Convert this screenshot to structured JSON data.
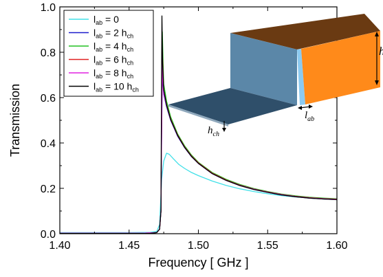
{
  "chart_data": {
    "type": "line",
    "title": "",
    "xlabel": "Frequency [ GHz ]",
    "ylabel": "Transmission",
    "xlim": [
      1.4,
      1.6
    ],
    "ylim": [
      0.0,
      1.0
    ],
    "xticks": [
      "1.40",
      "1.45",
      "1.50",
      "1.55",
      "1.60"
    ],
    "yticks": [
      "0.0",
      "0.2",
      "0.4",
      "0.6",
      "0.8",
      "1.0"
    ],
    "grid": false,
    "legend_position": "top-left",
    "series": [
      {
        "name": "l_ab = 0",
        "legend_main": "l",
        "legend_sub": "ab",
        "legend_rest": " = 0",
        "legend_rest_sub": "",
        "color": "#40e0e8",
        "points": [
          [
            1.4,
            0.005
          ],
          [
            1.45,
            0.005
          ],
          [
            1.465,
            0.006
          ],
          [
            1.47,
            0.01
          ],
          [
            1.472,
            0.04
          ],
          [
            1.4735,
            0.24
          ],
          [
            1.475,
            0.32
          ],
          [
            1.477,
            0.355
          ],
          [
            1.479,
            0.35
          ],
          [
            1.482,
            0.33
          ],
          [
            1.486,
            0.305
          ],
          [
            1.49,
            0.288
          ],
          [
            1.495,
            0.27
          ],
          [
            1.5,
            0.256
          ],
          [
            1.51,
            0.232
          ],
          [
            1.52,
            0.213
          ],
          [
            1.53,
            0.198
          ],
          [
            1.54,
            0.186
          ],
          [
            1.55,
            0.176
          ],
          [
            1.56,
            0.168
          ],
          [
            1.57,
            0.162
          ],
          [
            1.58,
            0.158
          ],
          [
            1.59,
            0.155
          ],
          [
            1.6,
            0.153
          ]
        ]
      },
      {
        "name": "l_ab = 2 h_ch",
        "legend_main": "l",
        "legend_sub": "ab",
        "legend_rest": " = 2 h",
        "legend_rest_sub": "ch",
        "color": "#1a1acc",
        "points": [
          [
            1.4,
            0.002
          ],
          [
            1.46,
            0.002
          ],
          [
            1.47,
            0.005
          ],
          [
            1.472,
            0.02
          ],
          [
            1.473,
            0.1
          ],
          [
            1.4735,
            0.45
          ],
          [
            1.474,
            0.7
          ],
          [
            1.4745,
            0.66
          ],
          [
            1.475,
            0.615
          ],
          [
            1.477,
            0.56
          ],
          [
            1.48,
            0.5
          ],
          [
            1.485,
            0.43
          ],
          [
            1.49,
            0.38
          ],
          [
            1.495,
            0.34
          ],
          [
            1.5,
            0.31
          ],
          [
            1.51,
            0.265
          ],
          [
            1.52,
            0.235
          ],
          [
            1.53,
            0.212
          ],
          [
            1.54,
            0.195
          ],
          [
            1.55,
            0.182
          ],
          [
            1.56,
            0.171
          ],
          [
            1.57,
            0.163
          ],
          [
            1.58,
            0.157
          ],
          [
            1.59,
            0.153
          ],
          [
            1.6,
            0.15
          ]
        ]
      },
      {
        "name": "l_ab = 4 h_ch",
        "legend_main": "l",
        "legend_sub": "ab",
        "legend_rest": " = 4 h",
        "legend_rest_sub": "ch",
        "color": "#20c020",
        "points": [
          [
            1.4,
            0.002
          ],
          [
            1.46,
            0.002
          ],
          [
            1.47,
            0.005
          ],
          [
            1.472,
            0.02
          ],
          [
            1.473,
            0.1
          ],
          [
            1.4735,
            0.55
          ],
          [
            1.474,
            0.89
          ],
          [
            1.4745,
            0.76
          ],
          [
            1.475,
            0.66
          ],
          [
            1.477,
            0.585
          ],
          [
            1.48,
            0.515
          ],
          [
            1.485,
            0.44
          ],
          [
            1.49,
            0.388
          ],
          [
            1.495,
            0.347
          ],
          [
            1.5,
            0.315
          ],
          [
            1.51,
            0.27
          ],
          [
            1.52,
            0.24
          ],
          [
            1.53,
            0.217
          ],
          [
            1.54,
            0.199
          ],
          [
            1.55,
            0.186
          ],
          [
            1.56,
            0.175
          ],
          [
            1.57,
            0.167
          ],
          [
            1.58,
            0.161
          ],
          [
            1.59,
            0.157
          ],
          [
            1.6,
            0.154
          ]
        ]
      },
      {
        "name": "l_ab = 6 h_ch",
        "legend_main": "l",
        "legend_sub": "ab",
        "legend_rest": " = 6 h",
        "legend_rest_sub": "ch",
        "color": "#e02020",
        "points": [
          [
            1.4,
            0.002
          ],
          [
            1.46,
            0.002
          ],
          [
            1.47,
            0.005
          ],
          [
            1.472,
            0.02
          ],
          [
            1.473,
            0.1
          ],
          [
            1.4735,
            0.5
          ],
          [
            1.474,
            0.8
          ],
          [
            1.4745,
            0.71
          ],
          [
            1.475,
            0.63
          ],
          [
            1.477,
            0.57
          ],
          [
            1.48,
            0.505
          ],
          [
            1.485,
            0.435
          ],
          [
            1.49,
            0.383
          ],
          [
            1.495,
            0.343
          ],
          [
            1.5,
            0.312
          ],
          [
            1.51,
            0.267
          ],
          [
            1.52,
            0.237
          ],
          [
            1.53,
            0.214
          ],
          [
            1.54,
            0.197
          ],
          [
            1.55,
            0.184
          ],
          [
            1.56,
            0.173
          ],
          [
            1.57,
            0.165
          ],
          [
            1.58,
            0.159
          ],
          [
            1.59,
            0.155
          ],
          [
            1.6,
            0.152
          ]
        ]
      },
      {
        "name": "l_ab = 8 h_ch",
        "legend_main": "l",
        "legend_sub": "ab",
        "legend_rest": " = 8 h",
        "legend_rest_sub": "ch",
        "color": "#e020e0",
        "points": [
          [
            1.4,
            0.002
          ],
          [
            1.46,
            0.002
          ],
          [
            1.47,
            0.005
          ],
          [
            1.472,
            0.02
          ],
          [
            1.473,
            0.1
          ],
          [
            1.4735,
            0.48
          ],
          [
            1.474,
            0.75
          ],
          [
            1.4745,
            0.68
          ],
          [
            1.475,
            0.62
          ],
          [
            1.477,
            0.565
          ],
          [
            1.48,
            0.502
          ],
          [
            1.485,
            0.432
          ],
          [
            1.49,
            0.381
          ],
          [
            1.495,
            0.341
          ],
          [
            1.5,
            0.31
          ],
          [
            1.51,
            0.265
          ],
          [
            1.52,
            0.235
          ],
          [
            1.53,
            0.213
          ],
          [
            1.54,
            0.196
          ],
          [
            1.55,
            0.183
          ],
          [
            1.56,
            0.172
          ],
          [
            1.57,
            0.164
          ],
          [
            1.58,
            0.158
          ],
          [
            1.59,
            0.154
          ],
          [
            1.6,
            0.151
          ]
        ]
      },
      {
        "name": "l_ab = 10 h_ch",
        "legend_main": "l",
        "legend_sub": "ab",
        "legend_rest": " = 10 h",
        "legend_rest_sub": "ch",
        "color": "#000000",
        "points": [
          [
            1.4,
            0.001
          ],
          [
            1.465,
            0.001
          ],
          [
            1.47,
            0.005
          ],
          [
            1.472,
            0.02
          ],
          [
            1.473,
            0.1
          ],
          [
            1.4733,
            0.5
          ],
          [
            1.4737,
            0.96
          ],
          [
            1.4742,
            0.75
          ],
          [
            1.475,
            0.635
          ],
          [
            1.477,
            0.568
          ],
          [
            1.48,
            0.503
          ],
          [
            1.485,
            0.433
          ],
          [
            1.49,
            0.381
          ],
          [
            1.495,
            0.341
          ],
          [
            1.5,
            0.31
          ],
          [
            1.51,
            0.265
          ],
          [
            1.52,
            0.235
          ],
          [
            1.53,
            0.212
          ],
          [
            1.54,
            0.195
          ],
          [
            1.55,
            0.182
          ],
          [
            1.56,
            0.171
          ],
          [
            1.57,
            0.163
          ],
          [
            1.58,
            0.157
          ],
          [
            1.59,
            0.153
          ],
          [
            1.6,
            0.15
          ]
        ]
      }
    ]
  },
  "inset": {
    "label_h": "h",
    "label_hch_main": "h",
    "label_hch_sub": "ch",
    "label_lab_main": "l",
    "label_lab_sub": "ab",
    "colors": {
      "top": "#6a3a12",
      "front_left": "#5b87a8",
      "front_right": "#ff8a1a",
      "gap": "#8ccaf0",
      "plate": "#2f4f6a",
      "plate_edge": "#8fa8bc"
    }
  }
}
